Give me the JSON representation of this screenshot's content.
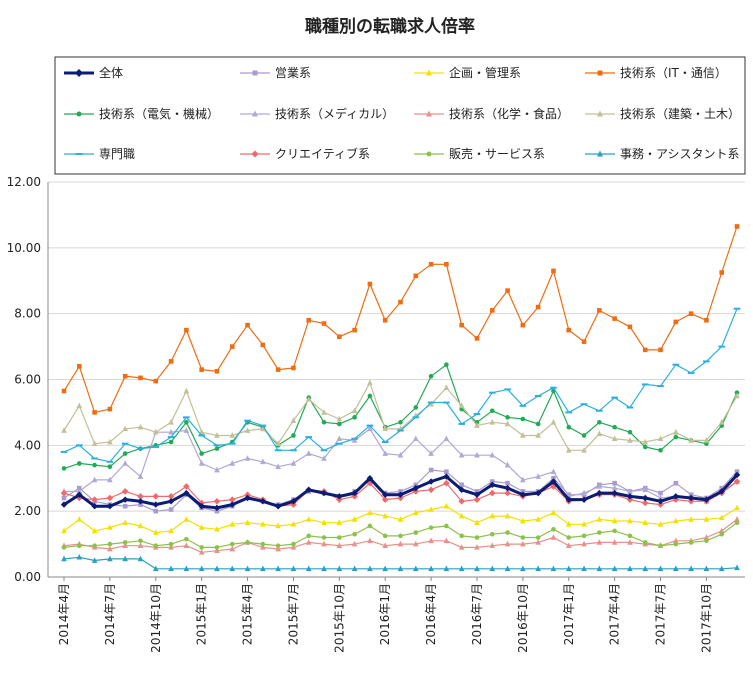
{
  "chart_data": {
    "type": "line",
    "title": "職種別の転職求人倍率",
    "xlabel": "",
    "ylabel": "",
    "ylim": [
      0,
      12
    ],
    "y_ticks": [
      "0.00",
      "2.00",
      "4.00",
      "6.00",
      "8.00",
      "10.00",
      "12.00"
    ],
    "x": [
      "2014年4月",
      "2014年5月",
      "2014年6月",
      "2014年7月",
      "2014年8月",
      "2014年9月",
      "2014年10月",
      "2014年11月",
      "2014年12月",
      "2015年1月",
      "2015年2月",
      "2015年3月",
      "2015年4月",
      "2015年5月",
      "2015年6月",
      "2015年7月",
      "2015年8月",
      "2015年9月",
      "2015年10月",
      "2015年11月",
      "2015年12月",
      "2016年1月",
      "2016年2月",
      "2016年3月",
      "2016年4月",
      "2016年5月",
      "2016年6月",
      "2016年7月",
      "2016年8月",
      "2016年9月",
      "2016年10月",
      "2016年11月",
      "2016年12月",
      "2017年1月",
      "2017年2月",
      "2017年3月",
      "2017年4月",
      "2017年5月",
      "2017年6月",
      "2017年7月",
      "2017年8月",
      "2017年9月",
      "2017年10月",
      "2017年11月",
      "2017年12月"
    ],
    "x_tick_labels": [
      "2014年4月",
      "2014年7月",
      "2014年10月",
      "2015年1月",
      "2015年4月",
      "2015年7月",
      "2015年10月",
      "2016年1月",
      "2016年4月",
      "2016年7月",
      "2016年10月",
      "2017年1月",
      "2017年4月",
      "2017年7月",
      "2017年10月"
    ],
    "grid": "horizontal",
    "legend_position": "top",
    "series": [
      {
        "name": "全体",
        "color": "#0b1c74",
        "marker": "diamond",
        "bold": true,
        "values": [
          2.2,
          2.5,
          2.15,
          2.15,
          2.35,
          2.3,
          2.2,
          2.3,
          2.55,
          2.15,
          2.1,
          2.2,
          2.4,
          2.3,
          2.15,
          2.3,
          2.65,
          2.55,
          2.45,
          2.55,
          3.0,
          2.5,
          2.5,
          2.7,
          2.9,
          3.05,
          2.65,
          2.5,
          2.8,
          2.7,
          2.5,
          2.55,
          2.9,
          2.35,
          2.35,
          2.55,
          2.55,
          2.45,
          2.4,
          2.3,
          2.45,
          2.4,
          2.35,
          2.6,
          3.1
        ]
      },
      {
        "name": "営業系",
        "color": "#a99bcf",
        "marker": "square",
        "values": [
          2.4,
          2.7,
          2.3,
          2.2,
          2.15,
          2.2,
          2.0,
          2.05,
          2.5,
          2.1,
          2.0,
          2.15,
          2.45,
          2.3,
          2.2,
          2.35,
          2.6,
          2.55,
          2.45,
          2.6,
          2.95,
          2.55,
          2.6,
          2.8,
          3.25,
          3.2,
          2.8,
          2.6,
          2.9,
          2.85,
          2.6,
          2.6,
          3.0,
          2.5,
          2.5,
          2.8,
          2.85,
          2.6,
          2.7,
          2.55,
          2.85,
          2.5,
          2.4,
          2.7,
          3.2
        ]
      },
      {
        "name": "企画・管理系",
        "color": "#f2e200",
        "marker": "triangle",
        "values": [
          1.4,
          1.75,
          1.4,
          1.5,
          1.65,
          1.55,
          1.35,
          1.4,
          1.75,
          1.5,
          1.45,
          1.6,
          1.65,
          1.6,
          1.55,
          1.6,
          1.75,
          1.65,
          1.65,
          1.75,
          1.95,
          1.85,
          1.75,
          1.95,
          2.05,
          2.15,
          1.85,
          1.65,
          1.85,
          1.85,
          1.7,
          1.75,
          1.95,
          1.6,
          1.6,
          1.75,
          1.7,
          1.7,
          1.65,
          1.6,
          1.7,
          1.75,
          1.75,
          1.8,
          2.1
        ]
      },
      {
        "name": "技術系（IT・通信）",
        "color": "#ef6d12",
        "marker": "square",
        "values": [
          5.65,
          6.4,
          5.0,
          5.1,
          6.1,
          6.05,
          5.95,
          6.55,
          7.5,
          6.3,
          6.25,
          7.0,
          7.65,
          7.05,
          6.3,
          6.35,
          7.8,
          7.7,
          7.3,
          7.5,
          8.9,
          7.8,
          8.35,
          9.15,
          9.5,
          9.5,
          7.65,
          7.25,
          8.1,
          8.7,
          7.65,
          8.2,
          9.3,
          7.5,
          7.15,
          8.1,
          7.85,
          7.6,
          6.9,
          6.9,
          7.75,
          8.0,
          7.8,
          9.25,
          10.65
        ]
      },
      {
        "name": "技術系（電気・機械）",
        "color": "#22aa55",
        "marker": "circle",
        "values": [
          3.3,
          3.45,
          3.4,
          3.35,
          3.75,
          3.9,
          4.0,
          4.1,
          4.7,
          3.75,
          3.9,
          4.1,
          4.7,
          4.55,
          4.0,
          4.3,
          5.45,
          4.7,
          4.65,
          4.85,
          5.5,
          4.55,
          4.7,
          5.15,
          6.1,
          6.45,
          5.1,
          4.7,
          5.05,
          4.85,
          4.8,
          4.65,
          5.65,
          4.55,
          4.3,
          4.7,
          4.55,
          4.4,
          3.95,
          3.85,
          4.25,
          4.15,
          4.05,
          4.6,
          5.6
        ]
      },
      {
        "name": "技術系（メディカル）",
        "color": "#b0a8d6",
        "marker": "triangle",
        "values": [
          2.6,
          2.6,
          2.95,
          2.95,
          3.45,
          3.05,
          4.4,
          4.4,
          4.45,
          3.45,
          3.25,
          3.45,
          3.6,
          3.5,
          3.35,
          3.45,
          3.75,
          3.6,
          4.2,
          4.15,
          4.5,
          3.75,
          3.7,
          4.2,
          3.75,
          4.2,
          3.7,
          3.7,
          3.7,
          3.4,
          2.95,
          3.05,
          3.2,
          2.45,
          2.55,
          2.75,
          2.7,
          2.6,
          2.65,
          2.4,
          2.45,
          2.4,
          2.3,
          2.6,
          2.9
        ]
      },
      {
        "name": "技術系（化学・食品）",
        "color": "#e8918c",
        "marker": "triangle",
        "values": [
          0.95,
          1.0,
          0.9,
          0.85,
          0.95,
          0.95,
          0.9,
          0.9,
          0.95,
          0.75,
          0.8,
          0.85,
          1.05,
          0.9,
          0.85,
          0.9,
          1.05,
          1.0,
          0.95,
          1.0,
          1.1,
          0.95,
          1.0,
          1.0,
          1.1,
          1.1,
          0.9,
          0.9,
          0.95,
          1.0,
          1.0,
          1.05,
          1.2,
          0.95,
          1.0,
          1.05,
          1.05,
          1.05,
          1.0,
          0.95,
          1.1,
          1.1,
          1.2,
          1.4,
          1.75
        ]
      },
      {
        "name": "技術系（建築・土木）",
        "color": "#c3bf96",
        "marker": "triangle",
        "values": [
          4.45,
          5.2,
          4.05,
          4.1,
          4.5,
          4.55,
          4.4,
          4.7,
          5.65,
          4.4,
          4.3,
          4.3,
          4.45,
          4.5,
          4.05,
          4.75,
          5.4,
          5.0,
          4.8,
          5.05,
          5.9,
          4.5,
          4.5,
          4.9,
          5.25,
          5.75,
          5.2,
          4.6,
          4.7,
          4.65,
          4.3,
          4.3,
          4.7,
          3.85,
          3.85,
          4.35,
          4.2,
          4.15,
          4.1,
          4.2,
          4.4,
          4.15,
          4.15,
          4.7,
          5.5
        ]
      },
      {
        "name": "専門職",
        "color": "#2ab0e0",
        "marker": "dash",
        "values": [
          3.8,
          4.0,
          3.6,
          3.5,
          4.05,
          3.9,
          3.95,
          4.25,
          4.85,
          4.3,
          4.0,
          4.05,
          4.75,
          4.6,
          3.85,
          3.85,
          4.25,
          3.85,
          4.05,
          4.2,
          4.6,
          4.1,
          4.45,
          4.85,
          5.3,
          5.3,
          4.65,
          4.95,
          5.6,
          5.7,
          5.2,
          5.5,
          5.75,
          5.0,
          5.25,
          5.05,
          5.45,
          5.15,
          5.85,
          5.8,
          6.45,
          6.2,
          6.55,
          7.0,
          8.15
        ]
      },
      {
        "name": "クリエイティブ系",
        "color": "#ef6a6a",
        "marker": "diamond",
        "values": [
          2.55,
          2.4,
          2.35,
          2.4,
          2.6,
          2.45,
          2.45,
          2.45,
          2.75,
          2.25,
          2.3,
          2.35,
          2.5,
          2.35,
          2.15,
          2.2,
          2.65,
          2.6,
          2.35,
          2.45,
          2.85,
          2.35,
          2.4,
          2.6,
          2.65,
          2.85,
          2.3,
          2.35,
          2.55,
          2.55,
          2.45,
          2.55,
          2.75,
          2.3,
          2.35,
          2.5,
          2.5,
          2.35,
          2.25,
          2.2,
          2.35,
          2.3,
          2.3,
          2.55,
          2.9
        ]
      },
      {
        "name": "販売・サービス系",
        "color": "#8cc24a",
        "marker": "circle",
        "values": [
          0.9,
          0.95,
          0.95,
          1.0,
          1.05,
          1.1,
          0.95,
          1.0,
          1.15,
          0.9,
          0.9,
          1.0,
          1.05,
          1.0,
          0.95,
          1.0,
          1.25,
          1.2,
          1.2,
          1.3,
          1.55,
          1.25,
          1.25,
          1.35,
          1.5,
          1.55,
          1.25,
          1.2,
          1.3,
          1.35,
          1.2,
          1.2,
          1.45,
          1.2,
          1.25,
          1.35,
          1.4,
          1.25,
          1.05,
          0.95,
          1.0,
          1.05,
          1.1,
          1.3,
          1.65
        ]
      },
      {
        "name": "事務・アシスタント系",
        "color": "#2aa0c0",
        "marker": "triangle",
        "values": [
          0.55,
          0.6,
          0.5,
          0.55,
          0.55,
          0.55,
          0.25,
          0.25,
          0.25,
          0.25,
          0.25,
          0.25,
          0.25,
          0.25,
          0.25,
          0.25,
          0.25,
          0.25,
          0.25,
          0.25,
          0.25,
          0.25,
          0.25,
          0.25,
          0.25,
          0.25,
          0.25,
          0.25,
          0.25,
          0.25,
          0.25,
          0.25,
          0.25,
          0.25,
          0.25,
          0.25,
          0.25,
          0.25,
          0.25,
          0.25,
          0.25,
          0.25,
          0.25,
          0.25,
          0.28
        ]
      }
    ]
  }
}
